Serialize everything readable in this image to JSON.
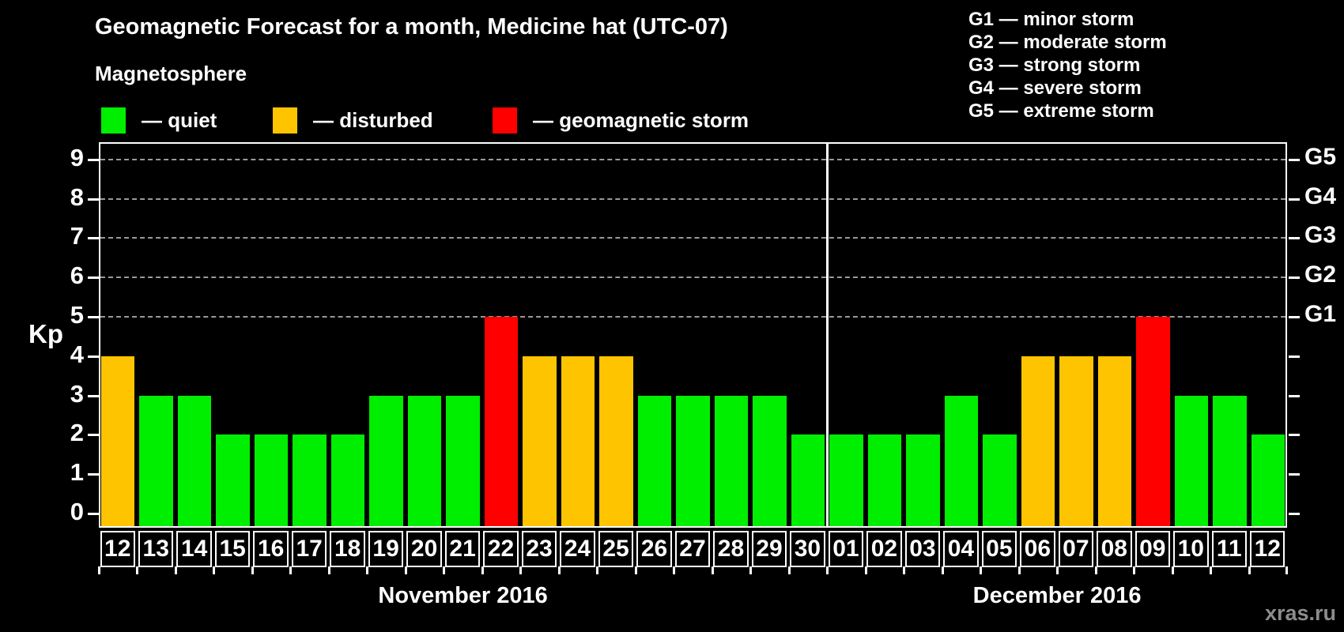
{
  "title": "Geomagnetic Forecast for a month, Medicine hat (UTC-07)",
  "subtitle": "Magnetosphere",
  "status_legend": [
    {
      "key": "quiet",
      "label": "— quiet",
      "color": "#00ee00"
    },
    {
      "key": "disturbed",
      "label": "— disturbed",
      "color": "#ffc400"
    },
    {
      "key": "storm",
      "label": "— geomagnetic storm",
      "color": "#ff0000"
    }
  ],
  "g_scale_legend": [
    "G1 — minor storm",
    "G2 — moderate storm",
    "G3 — strong storm",
    "G4 — severe storm",
    "G5 — extreme storm"
  ],
  "watermark": "xras.ru",
  "chart_data": {
    "type": "bar",
    "ylabel": "Kp",
    "ylim": [
      0,
      9.4
    ],
    "yticks": [
      0,
      1,
      2,
      3,
      4,
      5,
      6,
      7,
      8,
      9
    ],
    "gridline_kps": [
      5,
      6,
      7,
      8,
      9
    ],
    "grid_style": "dashed horizontal gridlines at Kp 5-9",
    "right_axis": [
      {
        "label": "G1",
        "kp": 5
      },
      {
        "label": "G2",
        "kp": 6
      },
      {
        "label": "G3",
        "kp": 7
      },
      {
        "label": "G4",
        "kp": 8
      },
      {
        "label": "G5",
        "kp": 9
      }
    ],
    "colors": {
      "quiet": "#00ee00",
      "disturbed": "#ffc400",
      "storm": "#ff0000"
    },
    "color_rule": "Kp 0-3 quiet (green), Kp 4 disturbed (orange), Kp >= 5 geomagnetic storm (red)",
    "legend_position": "top",
    "months": [
      {
        "label": "November 2016"
      },
      {
        "label": "December 2016"
      }
    ],
    "days": [
      {
        "month": 0,
        "day": "12",
        "kp": 4,
        "status": "disturbed"
      },
      {
        "month": 0,
        "day": "13",
        "kp": 3,
        "status": "quiet"
      },
      {
        "month": 0,
        "day": "14",
        "kp": 3,
        "status": "quiet"
      },
      {
        "month": 0,
        "day": "15",
        "kp": 2,
        "status": "quiet"
      },
      {
        "month": 0,
        "day": "16",
        "kp": 2,
        "status": "quiet"
      },
      {
        "month": 0,
        "day": "17",
        "kp": 2,
        "status": "quiet"
      },
      {
        "month": 0,
        "day": "18",
        "kp": 2,
        "status": "quiet"
      },
      {
        "month": 0,
        "day": "19",
        "kp": 3,
        "status": "quiet"
      },
      {
        "month": 0,
        "day": "20",
        "kp": 3,
        "status": "quiet"
      },
      {
        "month": 0,
        "day": "21",
        "kp": 3,
        "status": "quiet"
      },
      {
        "month": 0,
        "day": "22",
        "kp": 5,
        "status": "storm"
      },
      {
        "month": 0,
        "day": "23",
        "kp": 4,
        "status": "disturbed"
      },
      {
        "month": 0,
        "day": "24",
        "kp": 4,
        "status": "disturbed"
      },
      {
        "month": 0,
        "day": "25",
        "kp": 4,
        "status": "disturbed"
      },
      {
        "month": 0,
        "day": "26",
        "kp": 3,
        "status": "quiet"
      },
      {
        "month": 0,
        "day": "27",
        "kp": 3,
        "status": "quiet"
      },
      {
        "month": 0,
        "day": "28",
        "kp": 3,
        "status": "quiet"
      },
      {
        "month": 0,
        "day": "29",
        "kp": 3,
        "status": "quiet"
      },
      {
        "month": 0,
        "day": "30",
        "kp": 2,
        "status": "quiet"
      },
      {
        "month": 1,
        "day": "01",
        "kp": 2,
        "status": "quiet"
      },
      {
        "month": 1,
        "day": "02",
        "kp": 2,
        "status": "quiet"
      },
      {
        "month": 1,
        "day": "03",
        "kp": 2,
        "status": "quiet"
      },
      {
        "month": 1,
        "day": "04",
        "kp": 3,
        "status": "quiet"
      },
      {
        "month": 1,
        "day": "05",
        "kp": 2,
        "status": "quiet"
      },
      {
        "month": 1,
        "day": "06",
        "kp": 4,
        "status": "disturbed"
      },
      {
        "month": 1,
        "day": "07",
        "kp": 4,
        "status": "disturbed"
      },
      {
        "month": 1,
        "day": "08",
        "kp": 4,
        "status": "disturbed"
      },
      {
        "month": 1,
        "day": "09",
        "kp": 5,
        "status": "storm"
      },
      {
        "month": 1,
        "day": "10",
        "kp": 3,
        "status": "quiet"
      },
      {
        "month": 1,
        "day": "11",
        "kp": 3,
        "status": "quiet"
      },
      {
        "month": 1,
        "day": "12",
        "kp": 2,
        "status": "quiet"
      }
    ]
  }
}
